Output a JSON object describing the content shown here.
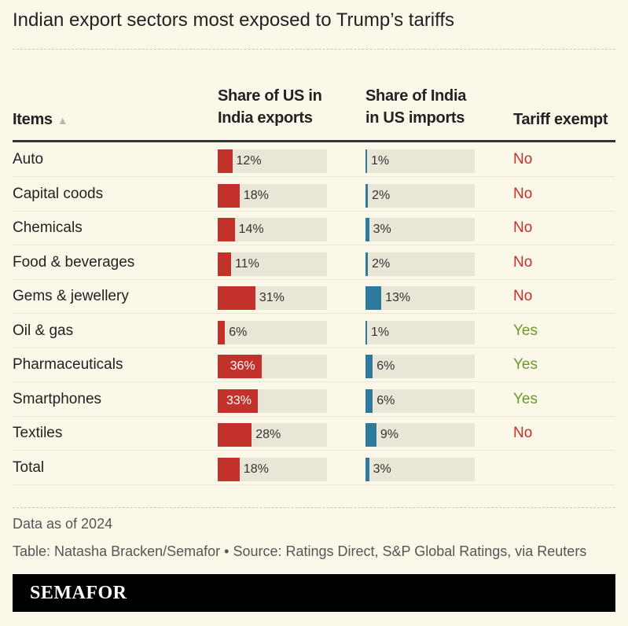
{
  "chart_data": {
    "type": "table",
    "title": "Indian export sectors most exposed to Trump’s tariffs",
    "columns": [
      "Items",
      "Share of US in India exports",
      "Share of India in US imports",
      "Tariff exempt"
    ],
    "sort_indicator": "▲",
    "scale_max": 90,
    "colors": {
      "us_share": "#c2312a",
      "india_share": "#2e7a9c",
      "track": "#e9e5d7",
      "yes": "#6b9a2b",
      "no": "#c2312a"
    },
    "rows": [
      {
        "item": "Auto",
        "us_share": 12,
        "india_share": 1,
        "exempt": "No"
      },
      {
        "item": "Capital coods",
        "us_share": 18,
        "india_share": 2,
        "exempt": "No"
      },
      {
        "item": "Chemicals",
        "us_share": 14,
        "india_share": 3,
        "exempt": "No"
      },
      {
        "item": "Food & beverages",
        "us_share": 11,
        "india_share": 2,
        "exempt": "No"
      },
      {
        "item": "Gems & jewellery",
        "us_share": 31,
        "india_share": 13,
        "exempt": "No"
      },
      {
        "item": "Oil & gas",
        "us_share": 6,
        "india_share": 1,
        "exempt": "Yes"
      },
      {
        "item": "Pharmaceuticals",
        "us_share": 36,
        "india_share": 6,
        "exempt": "Yes"
      },
      {
        "item": "Smartphones",
        "us_share": 33,
        "india_share": 6,
        "exempt": "Yes"
      },
      {
        "item": "Textiles",
        "us_share": 28,
        "india_share": 9,
        "exempt": "No"
      },
      {
        "item": "Total",
        "us_share": 18,
        "india_share": 3,
        "exempt": ""
      }
    ]
  },
  "header": {
    "col1": "Items",
    "col2_line1": "Share of US in",
    "col2_line2": "India exports",
    "col3_line1": "Share of India",
    "col3_line2": "in US imports",
    "col4": "Tariff exempt"
  },
  "notes": {
    "date": "Data as of 2024",
    "source": "Table: Natasha Bracken/Semafor • Source: Ratings Direct, S&P Global Ratings, via Reuters"
  },
  "footer": {
    "logo": "SEMAFOR"
  }
}
